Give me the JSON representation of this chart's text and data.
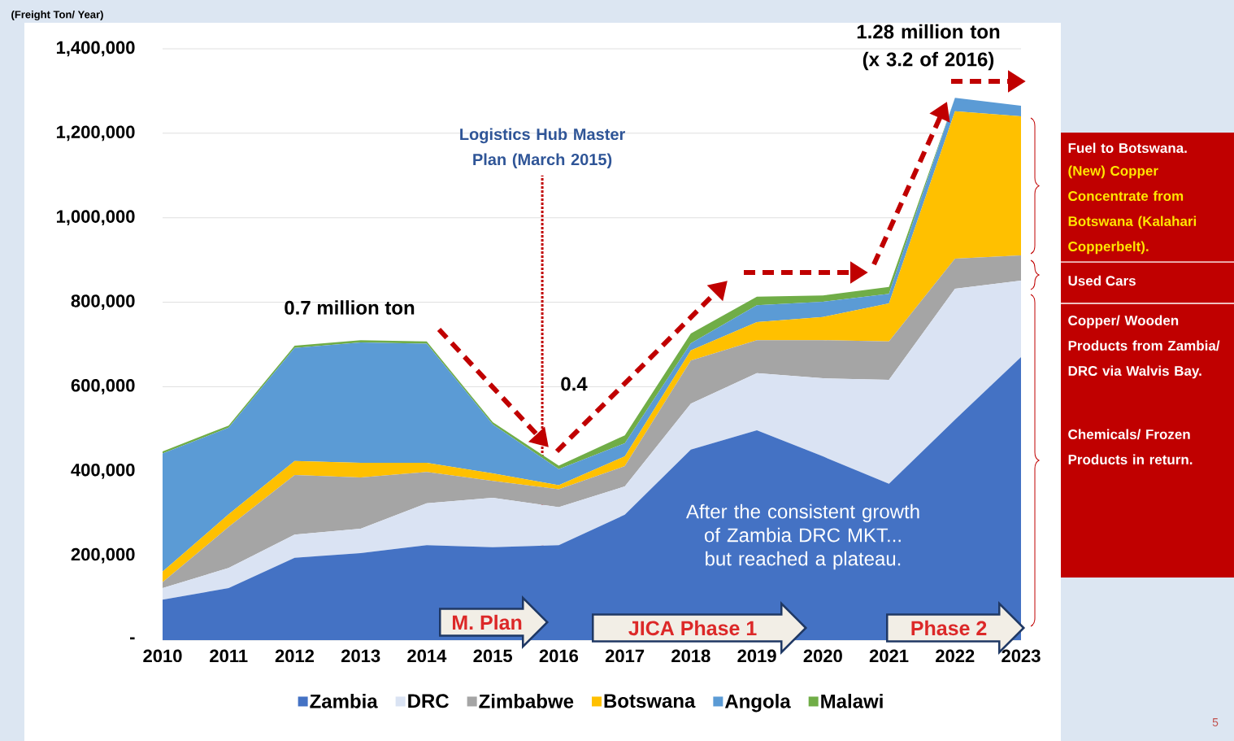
{
  "chart_data": {
    "type": "area",
    "stacked": true,
    "ylabel": "(Freight Ton/ Year)",
    "x": [
      2010,
      2011,
      2012,
      2013,
      2014,
      2015,
      2016,
      2017,
      2018,
      2019,
      2020,
      2021,
      2022,
      2023
    ],
    "xlim": [
      2010,
      2023
    ],
    "xticks": [
      2010,
      2011,
      2012,
      2013,
      2014,
      2015,
      2016,
      2017,
      2018,
      2019,
      2020,
      2021,
      2022,
      2023
    ],
    "ylim": [
      0,
      1400000
    ],
    "yticks": [
      {
        "value": 0,
        "label": "-"
      },
      {
        "value": 200000,
        "label": "200,000"
      },
      {
        "value": 400000,
        "label": "400,000"
      },
      {
        "value": 600000,
        "label": "600,000"
      },
      {
        "value": 800000,
        "label": "800,000"
      },
      {
        "value": 1000000,
        "label": "1,000,000"
      },
      {
        "value": 1200000,
        "label": "1,200,000"
      },
      {
        "value": 1400000,
        "label": "1,400,000"
      }
    ],
    "grid": "y",
    "legend": "bottom",
    "series": [
      {
        "name": "Zambia",
        "color": "#4472c4",
        "values": [
          96000,
          123000,
          195000,
          206000,
          225000,
          220000,
          225000,
          297000,
          451000,
          497000,
          435000,
          370000,
          522000,
          670000
        ]
      },
      {
        "name": "DRC",
        "color": "#dae3f3",
        "values": [
          27000,
          48000,
          55000,
          58000,
          99000,
          117000,
          90000,
          67000,
          109000,
          135000,
          185000,
          246000,
          310000,
          181000
        ]
      },
      {
        "name": "Zimbabwe",
        "color": "#a5a5a5",
        "values": [
          14000,
          97000,
          141000,
          121000,
          74000,
          40000,
          42000,
          48000,
          102000,
          78000,
          90000,
          91000,
          71000,
          60000
        ]
      },
      {
        "name": "Botswana",
        "color": "#ffc000",
        "values": [
          25000,
          30000,
          33000,
          35000,
          22000,
          18000,
          10000,
          23000,
          24000,
          43000,
          55000,
          90000,
          349000,
          329000
        ]
      },
      {
        "name": "Angola",
        "color": "#5b9bd5",
        "values": [
          280000,
          205000,
          268000,
          285000,
          282000,
          116000,
          38000,
          31000,
          17000,
          40000,
          36000,
          23000,
          32000,
          25000
        ]
      },
      {
        "name": "Malawi",
        "color": "#70ad47",
        "values": [
          5000,
          5000,
          5000,
          5000,
          5000,
          5000,
          8000,
          19000,
          23000,
          20000,
          15000,
          16000,
          0,
          0
        ]
      }
    ],
    "ref_lines": [
      {
        "axis": "x",
        "value": 2015.75,
        "label": "Logistics Hub Master Plan (March 2015)",
        "color": "#c00000",
        "line_style": "dotted"
      }
    ],
    "annotations": [
      "0.7 million ton",
      "0.4",
      "1.28 million ton (x 3.2 of 2016)",
      "After the consistent growth of Zambia DRC MKT... but reached a plateau.",
      "M. Plan",
      "JICA Phase 1",
      "Phase 2",
      "Fuel to Botswana.",
      "(New) Copper Concentrate from Botswana (Kalahari Copperbelt).",
      "Used Cars",
      "Copper/ Wooden Products from Zambia/ DRC via Walvis Bay.",
      "Chemicals/ Frozen Products in return.",
      "5"
    ]
  }
}
